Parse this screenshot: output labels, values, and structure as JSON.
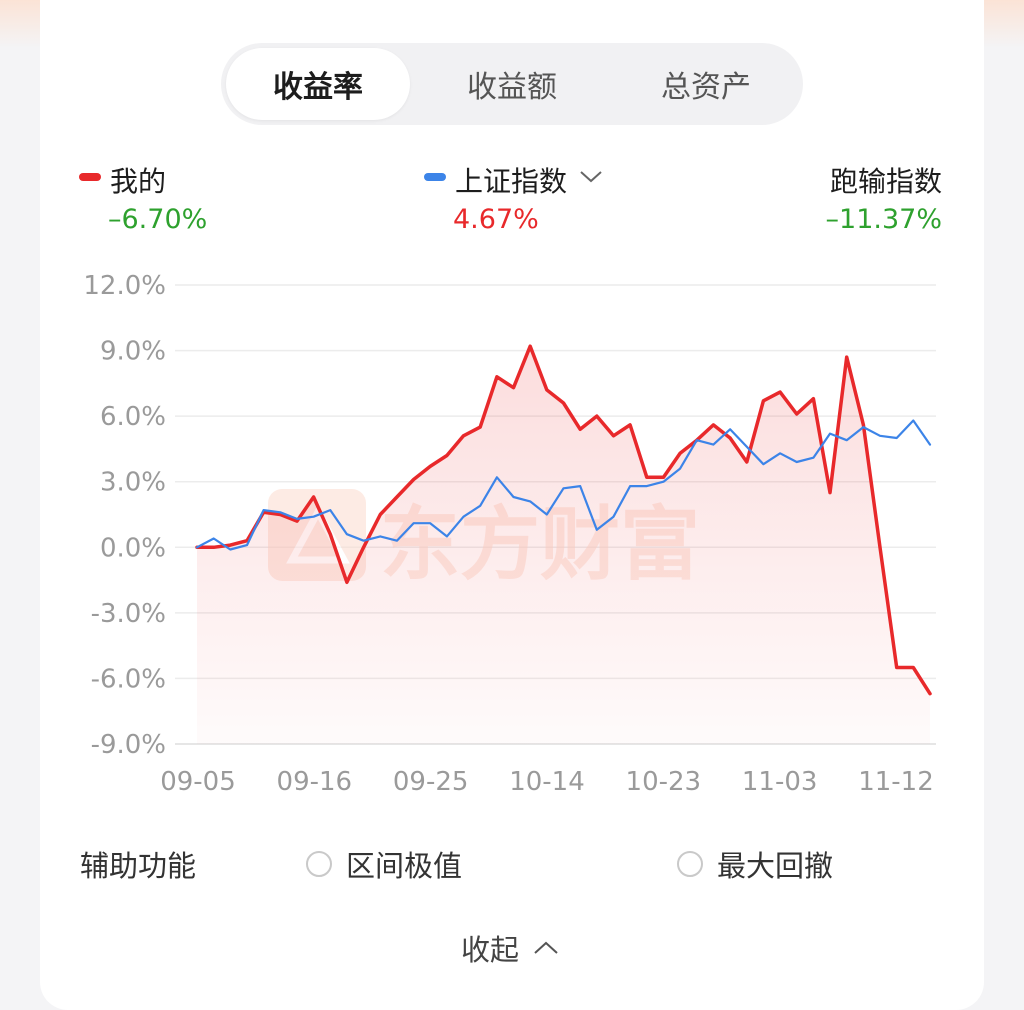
{
  "tabs": [
    {
      "label": "收益率",
      "active": true
    },
    {
      "label": "收益额",
      "active": false
    },
    {
      "label": "总资产",
      "active": false
    }
  ],
  "legend": [
    {
      "name": "我的",
      "value": "–6.70%",
      "value_color": "#2ea12e",
      "dot_color": "#e8292b"
    },
    {
      "name": "上证指数",
      "value": "4.67%",
      "value_color": "#e8292b",
      "dot_color": "#3c84e8",
      "has_dropdown": true
    },
    {
      "name": "跑输指数",
      "value": "–11.37%",
      "value_color": "#2ea12e"
    }
  ],
  "watermark": "东方财富",
  "chart_data": {
    "type": "line",
    "ylim": [
      -9,
      12
    ],
    "yticks": [
      "12.0%",
      "9.0%",
      "6.0%",
      "3.0%",
      "0.0%",
      "-3.0%",
      "-6.0%",
      "-9.0%"
    ],
    "xticks": [
      "09-05",
      "09-16",
      "09-25",
      "10-14",
      "10-23",
      "11-03",
      "11-12"
    ],
    "grid": true,
    "series": [
      {
        "name": "我的",
        "color": "#e8292b",
        "values": [
          0.0,
          0.0,
          0.1,
          0.3,
          1.6,
          1.5,
          1.2,
          2.3,
          0.6,
          -1.6,
          0.0,
          1.5,
          2.3,
          3.1,
          3.7,
          4.2,
          5.1,
          5.5,
          7.8,
          7.3,
          9.2,
          7.2,
          6.6,
          5.4,
          6.0,
          5.1,
          5.6,
          3.2,
          3.2,
          4.3,
          4.9,
          5.6,
          5.0,
          3.9,
          6.7,
          7.1,
          6.1,
          6.8,
          2.5,
          8.7,
          5.6,
          0.0,
          -5.5,
          -5.5,
          -6.7
        ]
      },
      {
        "name": "上证指数",
        "color": "#3c84e8",
        "values": [
          0.0,
          0.4,
          -0.1,
          0.1,
          1.7,
          1.6,
          1.3,
          1.4,
          1.7,
          0.6,
          0.3,
          0.5,
          0.3,
          1.1,
          1.1,
          0.5,
          1.4,
          1.9,
          3.2,
          2.3,
          2.1,
          1.5,
          2.7,
          2.8,
          0.8,
          1.4,
          2.8,
          2.8,
          3.0,
          3.6,
          4.9,
          4.7,
          5.4,
          4.6,
          3.8,
          4.3,
          3.9,
          4.1,
          5.2,
          4.9,
          5.5,
          5.1,
          5.0,
          5.8,
          4.7
        ]
      }
    ]
  },
  "aux": {
    "label": "辅助功能",
    "options": [
      "区间极值",
      "最大回撤"
    ]
  },
  "collapse_label": "收起"
}
